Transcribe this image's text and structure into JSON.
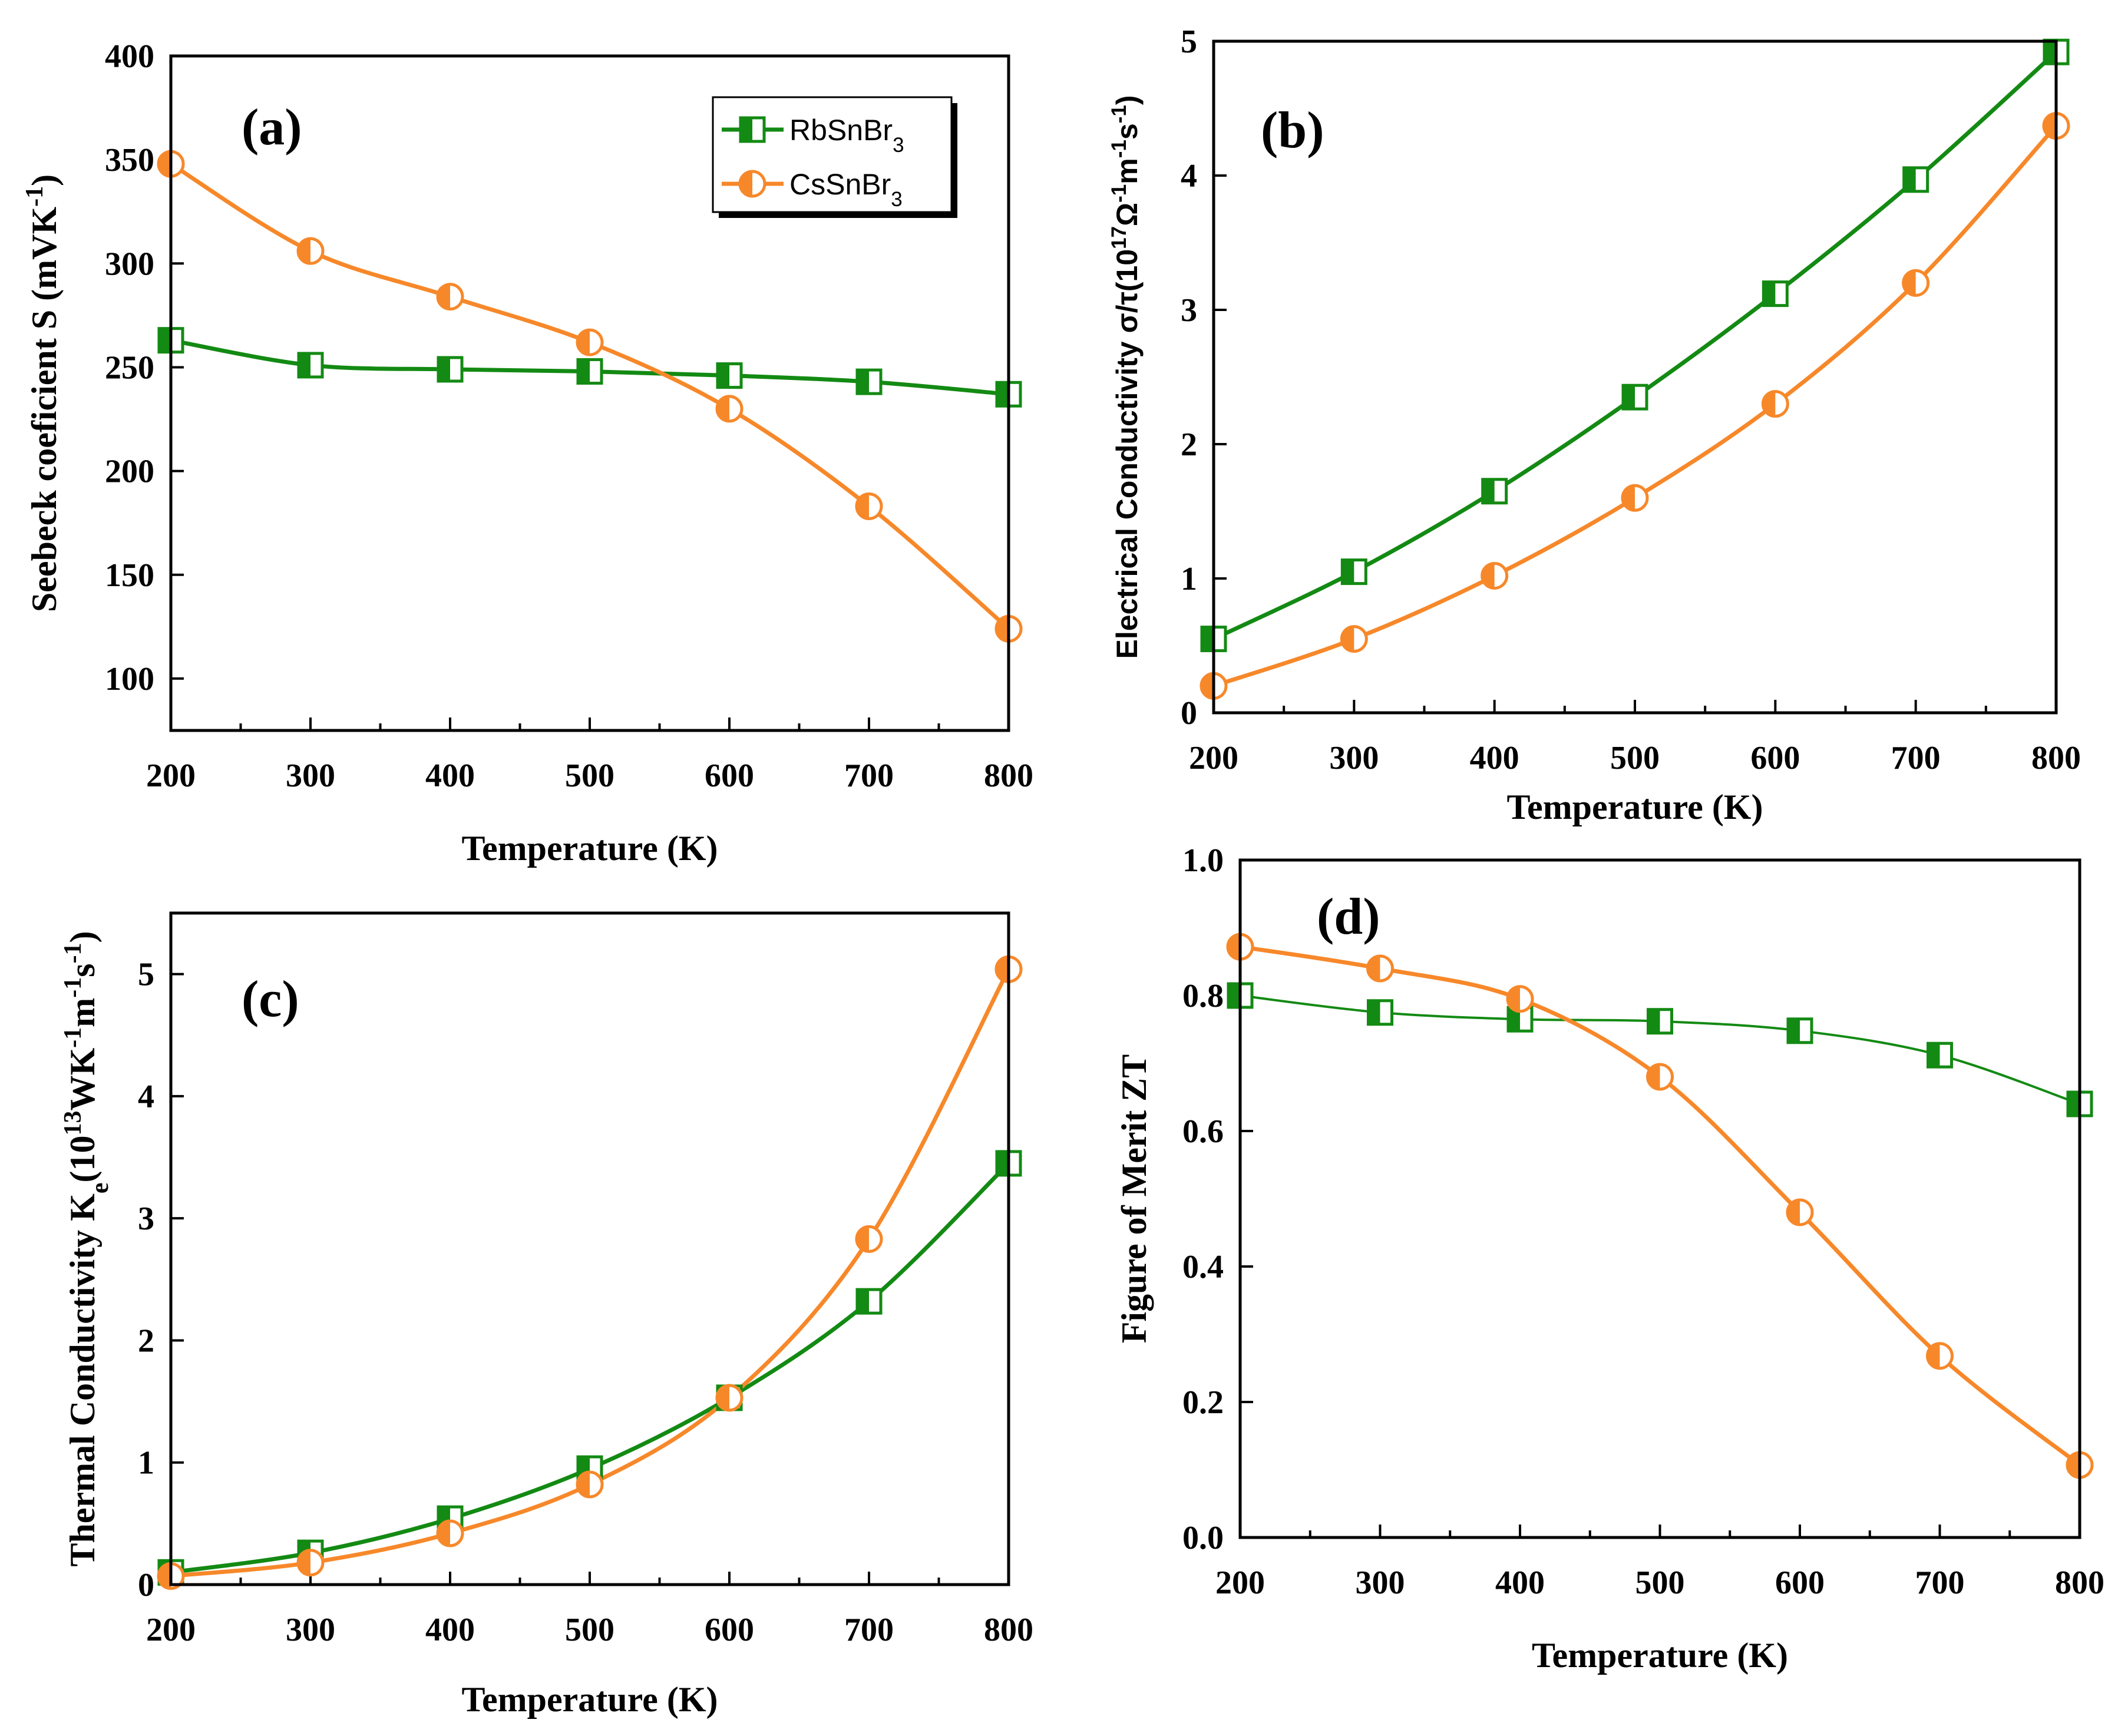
{
  "figure": {
    "colors": {
      "rb": "#138a13",
      "cs": "#f7882a"
    }
  },
  "chart_data": [
    {
      "id": "a",
      "type": "line",
      "panel_label": "(a)",
      "xlabel": "Temperature (K)",
      "ylabel": {
        "main": "Seebeck coeficient S (mVK",
        "sup": "-1",
        "close": ")"
      },
      "xlim": [
        200,
        800
      ],
      "ylim": [
        75,
        400
      ],
      "xticks": [
        200,
        300,
        400,
        500,
        600,
        700,
        800
      ],
      "yticks": [
        100,
        150,
        200,
        250,
        300,
        350,
        400
      ],
      "x_minor_step": 50,
      "legend": {
        "position": "top-right",
        "entries": [
          {
            "base": "RbSnBr",
            "sub": "3"
          },
          {
            "base": "CsSnBr",
            "sub": "3"
          }
        ]
      },
      "series": [
        {
          "name": "RbSnBr3",
          "x": [
            200,
            300,
            400,
            500,
            600,
            700,
            800
          ],
          "values": [
            263,
            251,
            249,
            248,
            246,
            243,
            237
          ]
        },
        {
          "name": "CsSnBr3",
          "x": [
            200,
            300,
            400,
            500,
            600,
            700,
            800
          ],
          "values": [
            348,
            306,
            284,
            262,
            230,
            183,
            124
          ]
        }
      ]
    },
    {
      "id": "b",
      "type": "line",
      "panel_label": "(b)",
      "xlabel": "Temperature (K)",
      "ylabel": {
        "main": "Electrical Conductivity σ/τ(10",
        "sup": "17",
        "mid": "Ω",
        "sup2": "-1",
        "mid2": "m",
        "sup3": "-1",
        "mid3": "s",
        "sup4": "-1",
        "close": ")"
      },
      "xlim": [
        200,
        800
      ],
      "ylim": [
        0,
        5
      ],
      "xticks": [
        200,
        300,
        400,
        500,
        600,
        700,
        800
      ],
      "yticks": [
        0,
        1,
        2,
        3,
        4,
        5
      ],
      "x_minor_step": 50,
      "series": [
        {
          "name": "RbSnBr3",
          "x": [
            200,
            300,
            400,
            500,
            600,
            700,
            800
          ],
          "values": [
            0.55,
            1.05,
            1.65,
            2.35,
            3.12,
            3.97,
            4.92
          ]
        },
        {
          "name": "CsSnBr3",
          "x": [
            200,
            300,
            400,
            500,
            600,
            700,
            800
          ],
          "values": [
            0.2,
            0.55,
            1.02,
            1.6,
            2.3,
            3.2,
            4.37
          ]
        }
      ]
    },
    {
      "id": "c",
      "type": "line",
      "panel_label": "(c)",
      "xlabel": "Temperature (K)",
      "ylabel": {
        "main": "Thermal Conductivity K",
        "sub": "e",
        "mid": "(10",
        "sup": "13",
        "mid2": "WK",
        "sup2": "-1",
        "mid3": "m",
        "sup3": "-1",
        "mid4": "s",
        "sup4": "-1",
        "close": ")"
      },
      "xlim": [
        200,
        800
      ],
      "ylim": [
        0,
        5.5
      ],
      "xticks": [
        200,
        300,
        400,
        500,
        600,
        700,
        800
      ],
      "yticks": [
        0,
        1,
        2,
        3,
        4,
        5
      ],
      "x_minor_step": 50,
      "series": [
        {
          "name": "RbSnBr3",
          "x": [
            200,
            300,
            400,
            500,
            600,
            700,
            800
          ],
          "values": [
            0.1,
            0.26,
            0.54,
            0.95,
            1.53,
            2.32,
            3.45
          ]
        },
        {
          "name": "CsSnBr3",
          "x": [
            200,
            300,
            400,
            500,
            600,
            700,
            800
          ],
          "values": [
            0.07,
            0.18,
            0.42,
            0.82,
            1.53,
            2.83,
            5.04
          ]
        }
      ]
    },
    {
      "id": "d",
      "type": "line",
      "panel_label": "(d)",
      "xlabel": "Temperature (K)",
      "ylabel": {
        "main": "Figure of Merit  ZT"
      },
      "xlim": [
        200,
        800
      ],
      "ylim": [
        0,
        1
      ],
      "xticks": [
        200,
        300,
        400,
        500,
        600,
        700,
        800
      ],
      "yticks": [
        0.0,
        0.2,
        0.4,
        0.6,
        0.8,
        1.0
      ],
      "ytick_decimals": 1,
      "x_minor_step": 50,
      "series": [
        {
          "name": "RbSnBr3",
          "x": [
            200,
            300,
            400,
            500,
            600,
            700,
            800
          ],
          "values": [
            0.8,
            0.775,
            0.765,
            0.762,
            0.748,
            0.712,
            0.64
          ]
        },
        {
          "name": "CsSnBr3",
          "x": [
            200,
            300,
            400,
            500,
            600,
            700,
            800
          ],
          "values": [
            0.872,
            0.84,
            0.795,
            0.68,
            0.48,
            0.268,
            0.107
          ]
        }
      ]
    }
  ]
}
